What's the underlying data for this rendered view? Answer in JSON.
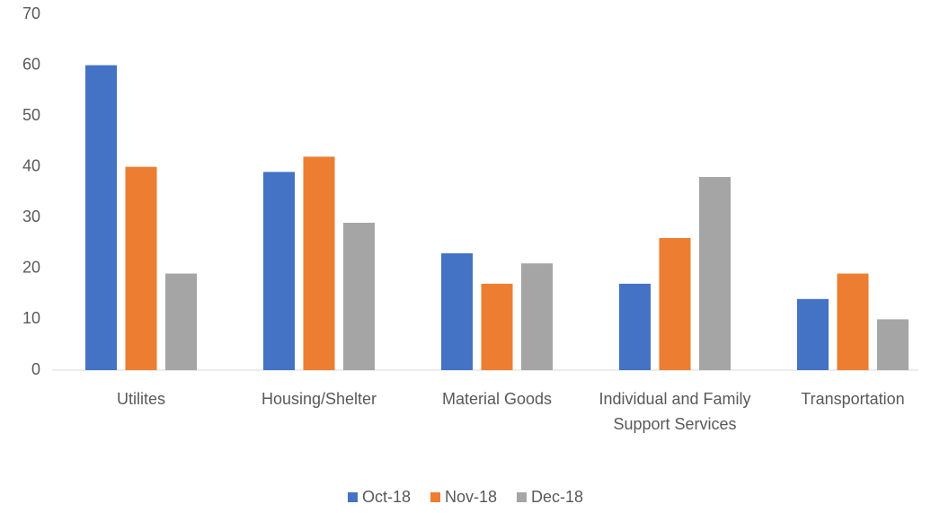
{
  "chart_data": {
    "type": "bar",
    "categories": [
      "Utilites",
      "Housing/Shelter",
      "Material Goods",
      "Individual and Family Support Services",
      "Transportation"
    ],
    "series": [
      {
        "name": "Oct-18",
        "color": "#4472c4",
        "values": [
          60,
          39,
          23,
          17,
          14
        ]
      },
      {
        "name": "Nov-18",
        "color": "#ed7d31",
        "values": [
          40,
          42,
          17,
          26,
          19
        ]
      },
      {
        "name": "Dec-18",
        "color": "#a5a5a5",
        "values": [
          19,
          29,
          21,
          38,
          10
        ]
      }
    ],
    "ylim": [
      0,
      70
    ],
    "yticks": [
      0,
      10,
      20,
      30,
      40,
      50,
      60,
      70
    ],
    "grid": false,
    "legend": "bottom"
  }
}
